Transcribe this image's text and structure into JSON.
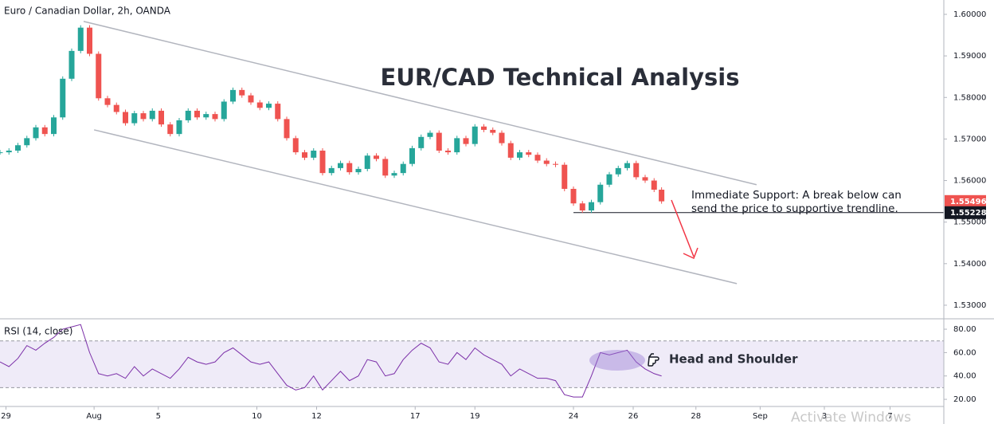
{
  "chart_data": [
    {
      "type": "candlestick",
      "title": "Euro / Canadian Dollar, 2h, OANDA",
      "headline": "EUR/CAD Technical Analysis",
      "annotation": [
        "Immediate Support: A break below can",
        "send the price to supportive trendline."
      ],
      "x": [
        0,
        0.3,
        0.6,
        0.9,
        1.2,
        1.5,
        1.8,
        2.1,
        2.4,
        2.7,
        3,
        3.3,
        3.6,
        3.9,
        4.2,
        4.5,
        4.8,
        5.1,
        5.4,
        5.7,
        6,
        6.3,
        6.6,
        6.9,
        7.2,
        7.5,
        7.8,
        8.1,
        8.4,
        8.7,
        9,
        9.3,
        9.6,
        9.9,
        10.2,
        10.5,
        10.8,
        11.1,
        11.4,
        11.7,
        12,
        12.3,
        12.6,
        12.9,
        13.2,
        13.5,
        13.8,
        14.1,
        14.4,
        14.7,
        15,
        15.3,
        15.6,
        15.9,
        16.2,
        16.5,
        16.8,
        17.1,
        17.4,
        17.7,
        18,
        18.3,
        18.6,
        18.9,
        19.2,
        19.5,
        19.8,
        20.1,
        20.4,
        20.7,
        21,
        21.3,
        21.6,
        21.9,
        22.15
      ],
      "values": [
        1.5668,
        1.5672,
        1.5685,
        1.5702,
        1.5728,
        1.5712,
        1.5752,
        1.5845,
        1.5912,
        1.5968,
        1.5905,
        1.5798,
        1.5782,
        1.5765,
        1.5738,
        1.5762,
        1.5748,
        1.5768,
        1.5735,
        1.5712,
        1.5745,
        1.5768,
        1.5752,
        1.576,
        1.5748,
        1.579,
        1.5818,
        1.5805,
        1.5788,
        1.5775,
        1.5785,
        1.5748,
        1.5702,
        1.5668,
        1.5655,
        1.5672,
        1.5618,
        1.563,
        1.5642,
        1.562,
        1.5628,
        1.566,
        1.5652,
        1.5612,
        1.5618,
        1.564,
        1.5678,
        1.5705,
        1.5715,
        1.5672,
        1.5668,
        1.5702,
        1.5688,
        1.573,
        1.5722,
        1.5715,
        1.569,
        1.5655,
        1.5668,
        1.5662,
        1.5648,
        1.564,
        1.5638,
        1.558,
        1.5545,
        1.5528,
        1.5548,
        1.559,
        1.5615,
        1.563,
        1.5642,
        1.5608,
        1.56,
        1.5578,
        1.555
      ],
      "up_color": "#26a69a",
      "down_color": "#ef5350",
      "last_price": 1.55496,
      "support": 1.55228,
      "support_start": 19.2,
      "trendlines": [
        {
          "x": [
            2.8,
            25.33
          ],
          "y": [
            1.5983,
            1.559
          ]
        },
        {
          "x": [
            3.15,
            24.67
          ],
          "y": [
            1.5722,
            1.5352
          ]
        }
      ],
      "xlim": [
        0,
        31.6
      ],
      "xticks": [
        {
          "value": 0.2,
          "label": "29"
        },
        {
          "value": 3.15,
          "label": "Aug"
        },
        {
          "value": 5.3,
          "label": "5"
        },
        {
          "value": 8.6,
          "label": "10"
        },
        {
          "value": 10.6,
          "label": "12"
        },
        {
          "value": 13.9,
          "label": "17"
        },
        {
          "value": 15.9,
          "label": "19"
        },
        {
          "value": 19.2,
          "label": "24"
        },
        {
          "value": 21.2,
          "label": "26"
        },
        {
          "value": 23.3,
          "label": "28"
        },
        {
          "value": 25.45,
          "label": "Sep"
        },
        {
          "value": 27.6,
          "label": "3"
        },
        {
          "value": 29.8,
          "label": "7"
        }
      ],
      "ylim": [
        1.52673,
        1.60345
      ],
      "yticks": [
        {
          "value": 1.53,
          "label": "1.53000"
        },
        {
          "value": 1.54,
          "label": "1.54000"
        },
        {
          "value": 1.55,
          "label": "1.55000"
        },
        {
          "value": 1.56,
          "label": "1.56000"
        },
        {
          "value": 1.57,
          "label": "1.57000"
        },
        {
          "value": 1.58,
          "label": "1.58000"
        },
        {
          "value": 1.59,
          "label": "1.59000"
        },
        {
          "value": 1.6,
          "label": "1.60000"
        }
      ]
    },
    {
      "type": "line",
      "title": "RSI (14, close)",
      "annotation": "Head and Shoulder",
      "color": "#7b2fa8",
      "values": [
        52,
        48,
        55,
        66,
        62,
        68,
        73,
        80,
        82,
        84,
        60,
        42,
        40,
        42,
        38,
        48,
        40,
        46,
        42,
        38,
        46,
        56,
        52,
        50,
        52,
        60,
        64,
        58,
        52,
        50,
        52,
        42,
        32,
        28,
        30,
        40,
        28,
        36,
        44,
        36,
        40,
        54,
        52,
        40,
        42,
        54,
        62,
        68,
        64,
        52,
        50,
        60,
        54,
        64,
        58,
        54,
        50,
        40,
        46,
        42,
        38,
        38,
        36,
        24,
        22,
        22,
        40,
        60,
        58,
        60,
        62,
        52,
        46,
        42,
        40
      ],
      "bands": [
        30,
        70
      ],
      "ylim": [
        13.9,
        88.9
      ],
      "yticks": [
        {
          "value": 20,
          "label": "20.00"
        },
        {
          "value": 40,
          "label": "40.00"
        },
        {
          "value": 60,
          "label": "60.00"
        },
        {
          "value": 80,
          "label": "80.00"
        }
      ]
    }
  ],
  "watermark": "Activate Windows"
}
